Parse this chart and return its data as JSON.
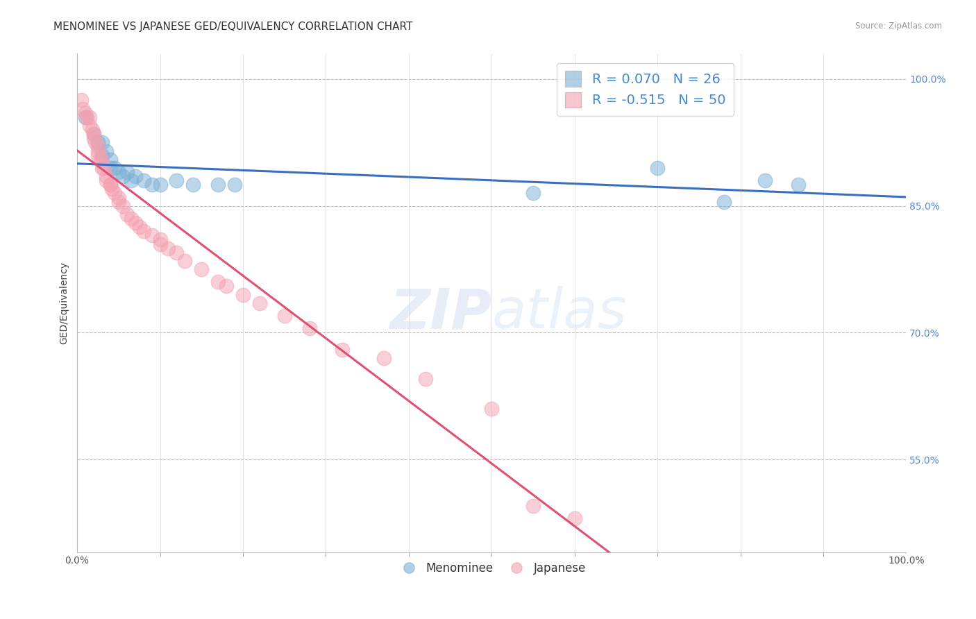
{
  "title": "MENOMINEE VS JAPANESE GED/EQUIVALENCY CORRELATION CHART",
  "source": "Source: ZipAtlas.com",
  "ylabel": "GED/Equivalency",
  "watermark": "ZIPatlas",
  "xlim": [
    0.0,
    1.0
  ],
  "ylim": [
    0.44,
    1.03
  ],
  "xtick_labels": [
    "0.0%",
    "100.0%"
  ],
  "ytick_labels": [
    "55.0%",
    "70.0%",
    "85.0%",
    "100.0%"
  ],
  "ytick_positions": [
    0.55,
    0.7,
    0.85,
    1.0
  ],
  "menominee_r": 0.07,
  "menominee_n": 26,
  "japanese_r": -0.515,
  "japanese_n": 50,
  "blue_color": "#7BAFD4",
  "pink_color": "#F4A0B0",
  "line_blue": "#3A6EC0",
  "line_pink": "#E05070",
  "menominee_x": [
    0.01,
    0.02,
    0.025,
    0.03,
    0.03,
    0.035,
    0.04,
    0.04,
    0.045,
    0.05,
    0.055,
    0.06,
    0.065,
    0.07,
    0.08,
    0.09,
    0.1,
    0.12,
    0.14,
    0.17,
    0.19,
    0.55,
    0.7,
    0.78,
    0.83,
    0.87
  ],
  "menominee_y": [
    0.955,
    0.935,
    0.925,
    0.925,
    0.91,
    0.915,
    0.905,
    0.895,
    0.895,
    0.89,
    0.885,
    0.89,
    0.88,
    0.885,
    0.88,
    0.875,
    0.875,
    0.88,
    0.875,
    0.875,
    0.875,
    0.865,
    0.895,
    0.855,
    0.88,
    0.875
  ],
  "japanese_x": [
    0.005,
    0.007,
    0.01,
    0.012,
    0.015,
    0.015,
    0.018,
    0.02,
    0.02,
    0.022,
    0.025,
    0.025,
    0.025,
    0.028,
    0.03,
    0.03,
    0.032,
    0.035,
    0.035,
    0.04,
    0.04,
    0.042,
    0.045,
    0.05,
    0.05,
    0.055,
    0.06,
    0.065,
    0.07,
    0.075,
    0.08,
    0.09,
    0.1,
    0.1,
    0.11,
    0.12,
    0.13,
    0.15,
    0.17,
    0.18,
    0.2,
    0.22,
    0.25,
    0.28,
    0.32,
    0.37,
    0.42,
    0.5,
    0.55,
    0.6
  ],
  "japanese_y": [
    0.975,
    0.965,
    0.96,
    0.955,
    0.955,
    0.945,
    0.94,
    0.935,
    0.93,
    0.925,
    0.92,
    0.915,
    0.91,
    0.905,
    0.905,
    0.895,
    0.895,
    0.885,
    0.88,
    0.875,
    0.875,
    0.87,
    0.865,
    0.86,
    0.855,
    0.85,
    0.84,
    0.835,
    0.83,
    0.825,
    0.82,
    0.815,
    0.81,
    0.805,
    0.8,
    0.795,
    0.785,
    0.775,
    0.76,
    0.755,
    0.745,
    0.735,
    0.72,
    0.705,
    0.68,
    0.67,
    0.645,
    0.61,
    0.495,
    0.48
  ],
  "background_color": "#FFFFFF",
  "grid_color": "#CCCCCC",
  "title_fontsize": 11,
  "axis_label_fontsize": 10,
  "legend_fontsize": 14,
  "tick_fontsize": 10,
  "xtick_minor_positions": [
    0.1,
    0.2,
    0.3,
    0.4,
    0.5,
    0.6,
    0.7,
    0.8,
    0.9
  ]
}
